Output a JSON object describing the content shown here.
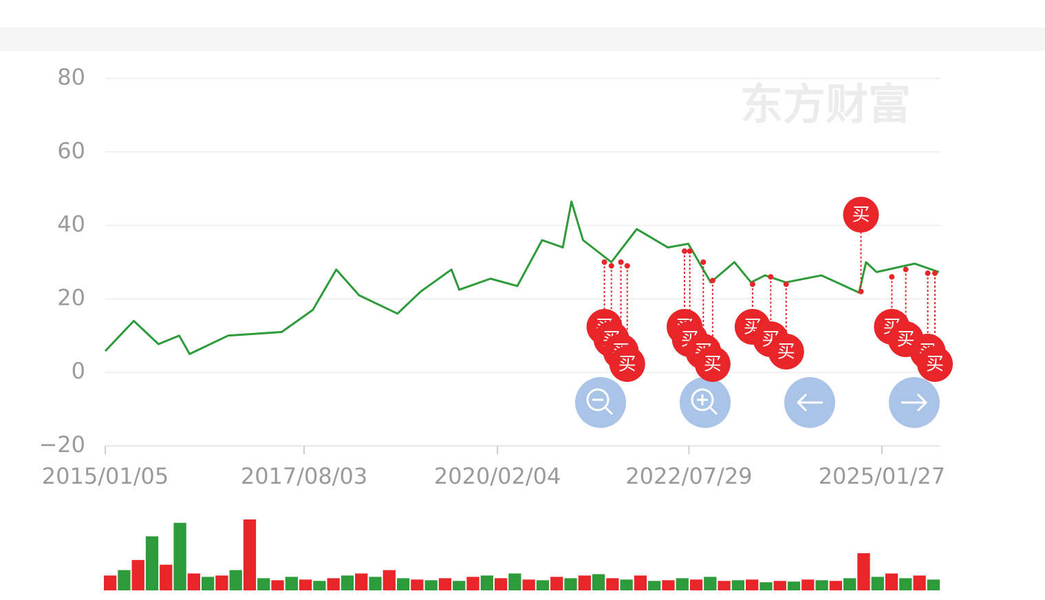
{
  "chart_data": {
    "type": "line",
    "x": [
      "2015/01/05",
      "2015/05/20",
      "2015/09/14",
      "2015/12/21",
      "2016/02/08",
      "2016/08/08",
      "2017/04/19",
      "2017/09/13",
      "2018/01/02",
      "2018/04/20",
      "2018/10/19",
      "2019/02/06",
      "2019/07/01",
      "2019/08/07",
      "2020/01/02",
      "2020/05/08",
      "2020/09/02",
      "2020/12/09",
      "2021/01/19",
      "2021/03/15",
      "2021/07/27",
      "2021/11/24",
      "2022/04/20",
      "2022/07/26",
      "2022/11/09",
      "2023/03/01",
      "2023/05/19",
      "2023/07/24",
      "2023/10/31",
      "2024/04/16",
      "2024/10/11",
      "2024/11/13",
      "2025/01/02",
      "2025/07/01",
      "2025/10/24"
    ],
    "values": [
      5.8,
      14,
      7.7,
      10,
      5,
      10,
      11,
      17,
      28,
      21,
      16,
      22,
      28,
      22.5,
      25.5,
      23.5,
      36,
      34,
      46.5,
      36,
      30,
      39,
      34,
      35,
      24.5,
      30,
      24.5,
      26.4,
      24.5,
      26.4,
      21.7,
      30,
      27.3,
      29.6,
      27.3
    ],
    "color": "#2e9b3a",
    "xlim": [
      "2015/01/05",
      "2025/10/31"
    ],
    "xticks": [
      "2015/01/05",
      "2017/08/03",
      "2020/02/04",
      "2022/07/29",
      "2025/01/27"
    ],
    "ylim": [
      -20,
      80
    ],
    "yticks": [
      {
        "value": -20,
        "label": "−20"
      },
      0,
      20,
      40,
      60,
      80
    ],
    "grid": true,
    "watermark": "东方财富",
    "buy_label": "买",
    "signal_color": "#e8262a",
    "buy_signals": {
      "x": [
        "2021/06/24",
        "2021/07/27",
        "2021/09/10",
        "2021/10/10",
        "2022/07/08",
        "2022/08/02",
        "2022/10/05",
        "2022/11/18",
        "2023/05/26",
        "2023/08/20",
        "2023/11/01",
        "2024/10/20",
        "2025/03/15",
        "2025/05/20",
        "2025/09/01",
        "2025/10/05"
      ],
      "values": [
        30,
        29,
        30,
        29,
        33,
        33,
        30,
        25,
        24,
        26,
        24,
        22,
        26,
        28,
        27,
        27
      ]
    },
    "volume": {
      "values": [
        22,
        30,
        45,
        80,
        38,
        100,
        25,
        20,
        22,
        30,
        105,
        18,
        15,
        20,
        16,
        14,
        18,
        22,
        25,
        20,
        30,
        18,
        16,
        15,
        18,
        14,
        20,
        22,
        18,
        25,
        16,
        15,
        20,
        18,
        22,
        24,
        18,
        16,
        22,
        14,
        15,
        18,
        16,
        20,
        14,
        15,
        16,
        12,
        14,
        13,
        16,
        15,
        14,
        18,
        55,
        20,
        25,
        18,
        22,
        16
      ],
      "colors": [
        "#e8262a",
        "#2e9b3a"
      ],
      "ylim": [
        0,
        110
      ]
    }
  }
}
